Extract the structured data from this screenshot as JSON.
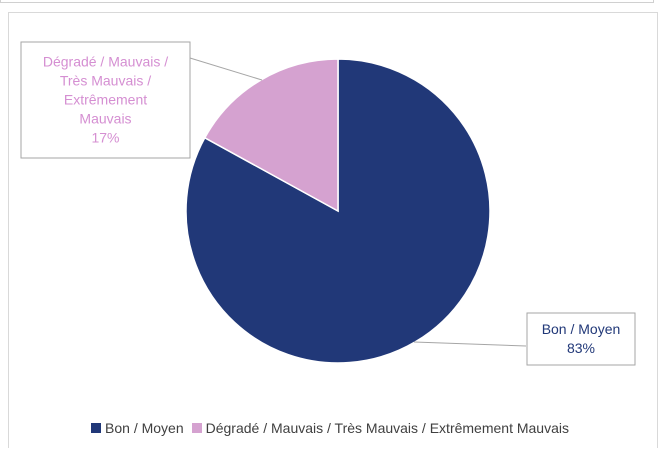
{
  "chart_data": {
    "type": "pie",
    "slices": [
      {
        "label": "Bon / Moyen",
        "value": 83,
        "display": "83%",
        "color": "#213878",
        "label_color": "#213878"
      },
      {
        "label": "Dégradé / Mauvais / Très Mauvais / Extrêmement Mauvais",
        "value": 17,
        "display": "17%",
        "color": "#d5a2d0",
        "label_color": "#d58fd2"
      }
    ],
    "data_labels": {
      "slice_0_lines": [
        "Bon / Moyen",
        "83%"
      ],
      "slice_1_lines": [
        "Dégradé / Mauvais /",
        "Très Mauvais /",
        "Extrêmement",
        "Mauvais",
        "17%"
      ]
    },
    "legend": {
      "position": "bottom",
      "items": [
        "Bon / Moyen",
        "Dégradé / Mauvais / Très Mauvais / Extrêmement Mauvais"
      ]
    }
  }
}
